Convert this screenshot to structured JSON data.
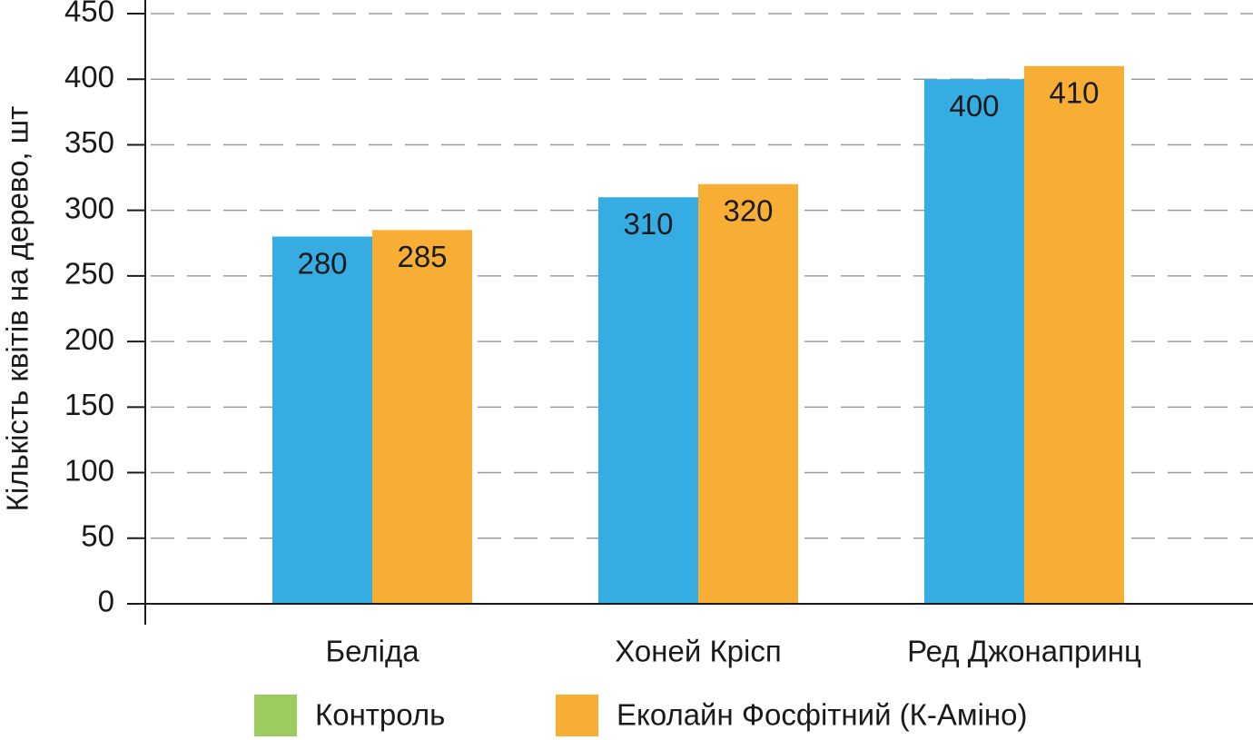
{
  "chart_data": {
    "type": "bar",
    "y_axis_label": "Кількість квітів на дерево, шт",
    "categories": [
      "Беліда",
      "Хоней Крісп",
      "Ред Джонапринц"
    ],
    "series": [
      {
        "name": "Контроль",
        "color": "#35ade2",
        "legend_color": "#9ccb5f",
        "values": [
          280,
          310,
          400
        ]
      },
      {
        "name": "Еколайн Фосфітний (К-Аміно)",
        "color": "#f8ad34",
        "legend_color": "#f8ad34",
        "values": [
          285,
          320,
          410
        ]
      }
    ],
    "ylim": [
      0,
      450
    ],
    "yticks": [
      0,
      50,
      100,
      150,
      200,
      250,
      300,
      350,
      400,
      450
    ],
    "grid": true,
    "legend": "bottom"
  }
}
